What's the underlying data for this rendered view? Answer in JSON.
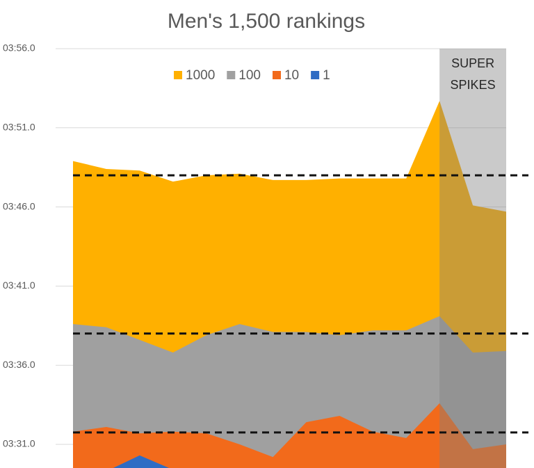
{
  "chart_data": {
    "type": "area",
    "title": "Men's 1,500 rankings",
    "categories": [
      null,
      null,
      null,
      null,
      null,
      null,
      null,
      null,
      null,
      null,
      null,
      null,
      null,
      null
    ],
    "series": [
      {
        "name": "1000",
        "color": "#ffb000",
        "values": [
          228.9,
          228.4,
          228.3,
          227.6,
          228.0,
          228.1,
          227.7,
          227.7,
          227.8,
          227.8,
          227.8,
          232.7,
          226.1,
          225.7
        ]
      },
      {
        "name": "100",
        "color": "#a0a0a0",
        "values": [
          218.6,
          218.4,
          217.6,
          216.8,
          217.9,
          218.6,
          218.1,
          218.1,
          217.9,
          218.2,
          218.2,
          219.1,
          216.8,
          216.9
        ]
      },
      {
        "name": "10",
        "color": "#f26a1b",
        "values": [
          211.8,
          212.1,
          211.7,
          211.8,
          211.7,
          211.0,
          210.2,
          212.4,
          212.8,
          211.8,
          211.4,
          213.6,
          210.7,
          211.0
        ]
      },
      {
        "name": "1",
        "color": "#2f6cc4",
        "values": [
          209.0,
          209.3,
          210.3,
          209.4,
          209.0,
          209.0,
          209.0,
          209.0,
          209.0,
          209.0,
          209.0,
          209.0,
          209.0,
          209.0
        ]
      }
    ],
    "ylim": [
      209.5,
      236
    ],
    "yticks": [
      {
        "value": 211,
        "label": "03:31.0"
      },
      {
        "value": 216,
        "label": "03:36.0"
      },
      {
        "value": 221,
        "label": "03:41.0"
      },
      {
        "value": 226,
        "label": "03:46.0"
      },
      {
        "value": 231,
        "label": "03:51.0"
      },
      {
        "value": 236,
        "label": "03:56.0"
      }
    ],
    "grid": true,
    "legend": "top",
    "reference_lines": [
      228.0,
      218.0,
      211.75
    ],
    "highlight": {
      "label": [
        "SUPER",
        "SPIKES"
      ],
      "start": 11,
      "end": 13,
      "color": "#808080"
    }
  }
}
